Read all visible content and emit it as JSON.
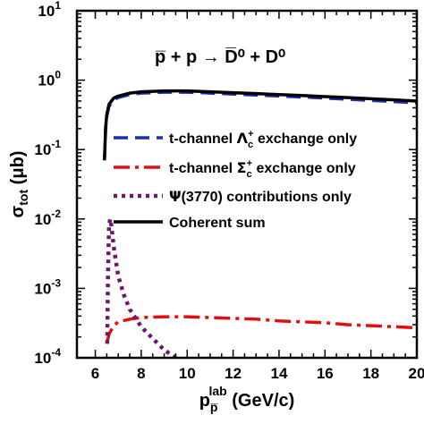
{
  "chart_data": {
    "type": "line",
    "title": "",
    "annotation": "p̅ + p → D̅⁰ + D⁰",
    "xlabel": {
      "main": "p",
      "sub": "p̅",
      "sup": "lab",
      "unit": "(GeV/c)"
    },
    "ylabel": {
      "main": "σ",
      "sub": "tot",
      "unit": "(μb)"
    },
    "xlim": [
      5.2,
      20
    ],
    "ylim": [
      0.0001,
      10
    ],
    "yscale": "log",
    "grid": false,
    "legend_position": "center-right",
    "x_ticks": [
      6,
      8,
      10,
      12,
      14,
      16,
      18,
      20
    ],
    "y_ticks": [
      {
        "value": 0.0001,
        "base": "10",
        "exp": "-4"
      },
      {
        "value": 0.001,
        "base": "10",
        "exp": "-3"
      },
      {
        "value": 0.01,
        "base": "10",
        "exp": "-2"
      },
      {
        "value": 0.1,
        "base": "10",
        "exp": "-1"
      },
      {
        "value": 1,
        "base": "10",
        "exp": "0"
      },
      {
        "value": 10,
        "base": "10",
        "exp": "1"
      }
    ],
    "series": [
      {
        "name": "t-channel Λc+ exchange only",
        "legend": {
          "pre": "t-channel ",
          "sym": "Λ",
          "sub": "c",
          "sup": "+",
          "post": " exchange only"
        },
        "color": "#1f2fb4",
        "dash": "16,8",
        "width": 3.5,
        "x": [
          6.4,
          6.45,
          6.5,
          6.6,
          6.8,
          7.0,
          7.5,
          8.0,
          9.0,
          10.0,
          11.0,
          12.0,
          13.0,
          14.0,
          15.0,
          16.0,
          17.0,
          18.0,
          19.0,
          20.0
        ],
        "y": [
          0.07,
          0.2,
          0.3,
          0.42,
          0.52,
          0.56,
          0.62,
          0.65,
          0.67,
          0.67,
          0.65,
          0.63,
          0.61,
          0.59,
          0.57,
          0.55,
          0.53,
          0.51,
          0.49,
          0.47
        ]
      },
      {
        "name": "t-channel Σc+ exchange only",
        "legend": {
          "pre": "t-channel ",
          "sym": "Σ",
          "sub": "c",
          "sup": "+",
          "post": " exchange only"
        },
        "color": "#e01010",
        "dash": "18,6,4,6",
        "width": 3.5,
        "x": [
          6.5,
          6.6,
          6.8,
          7.0,
          7.5,
          8.0,
          9.0,
          10.0,
          11.0,
          12.0,
          13.0,
          14.0,
          15.0,
          16.0,
          17.0,
          18.0,
          19.0,
          20.0
        ],
        "y": [
          0.00016,
          0.00022,
          0.00029,
          0.00033,
          0.00036,
          0.00038,
          0.00039,
          0.00039,
          0.00038,
          0.00037,
          0.00036,
          0.00034,
          0.00033,
          0.00032,
          0.0003,
          0.00029,
          0.00028,
          0.00027
        ]
      },
      {
        "name": "Ψ(3770) contributions only",
        "legend": {
          "pre": "",
          "sym": "Ψ",
          "sub": "",
          "sup": "",
          "post": "(3770) contributions only"
        },
        "color": "#6a1a6a",
        "dash": "4,5",
        "width": 4.5,
        "x": [
          6.52,
          6.55,
          6.6,
          6.65,
          6.7,
          6.8,
          7.0,
          7.25,
          7.5,
          8.0,
          8.5,
          9.0,
          9.5
        ],
        "y": [
          0.00016,
          0.0015,
          0.008,
          0.01,
          0.008,
          0.004,
          0.0015,
          0.0008,
          0.0005,
          0.00028,
          0.00019,
          0.00013,
          0.0001
        ]
      },
      {
        "name": "Coherent sum",
        "legend": {
          "pre": "",
          "sym": "",
          "sub": "",
          "sup": "",
          "post": "Coherent sum"
        },
        "color": "#000000",
        "dash": "",
        "width": 3.5,
        "x": [
          6.4,
          6.45,
          6.5,
          6.6,
          6.8,
          7.0,
          7.5,
          8.0,
          9.0,
          10.0,
          11.0,
          12.0,
          13.0,
          14.0,
          15.0,
          16.0,
          17.0,
          18.0,
          19.0,
          20.0
        ],
        "y": [
          0.07,
          0.21,
          0.32,
          0.45,
          0.55,
          0.59,
          0.65,
          0.68,
          0.7,
          0.7,
          0.68,
          0.66,
          0.64,
          0.62,
          0.6,
          0.58,
          0.56,
          0.54,
          0.52,
          0.5
        ]
      }
    ]
  }
}
